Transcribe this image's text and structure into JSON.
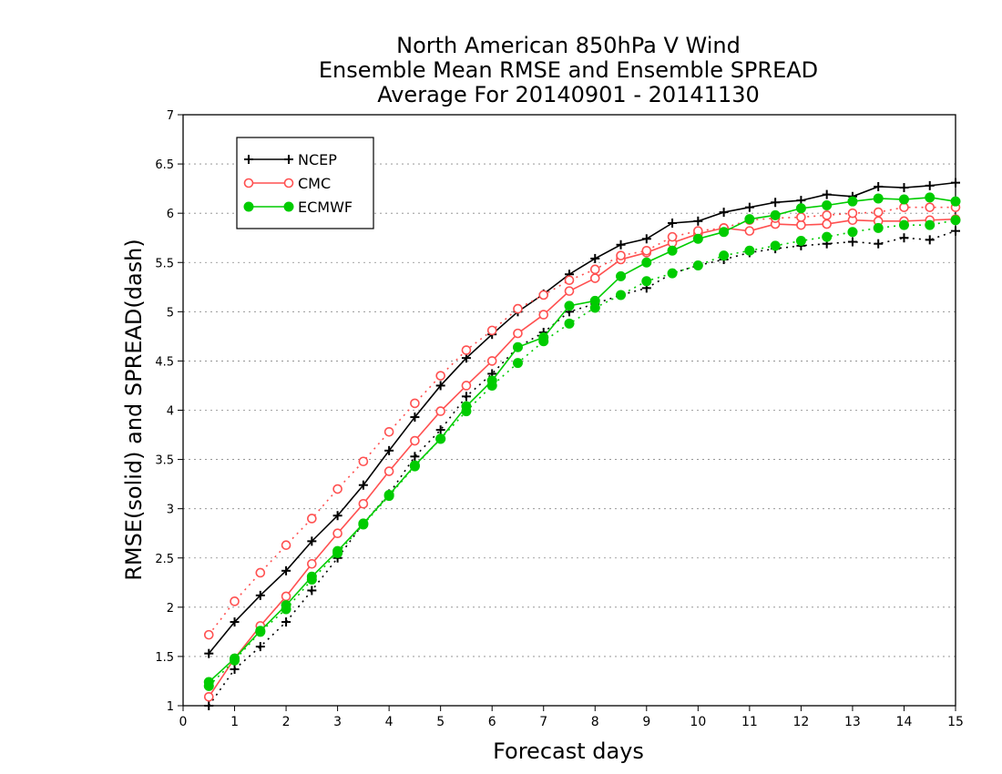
{
  "chart_data": {
    "type": "line",
    "title": [
      "North American 850hPa V Wind",
      "Ensemble Mean RMSE and Ensemble SPREAD",
      "Average For 20140901 - 20141130"
    ],
    "xlabel": "Forecast days",
    "ylabel": "RMSE(solid) and SPREAD(dash)",
    "xlim": [
      0,
      15
    ],
    "ylim": [
      1,
      7
    ],
    "xticks": [
      "0",
      "1",
      "2",
      "3",
      "4",
      "5",
      "6",
      "7",
      "8",
      "9",
      "10",
      "11",
      "12",
      "13",
      "14",
      "15"
    ],
    "yticks": [
      "1",
      "1.5",
      "2",
      "2.5",
      "3",
      "3.5",
      "4",
      "4.5",
      "5",
      "5.5",
      "6",
      "6.5",
      "7"
    ],
    "grid": true,
    "legend_position": "top-left",
    "x": [
      0.5,
      1,
      1.5,
      2,
      2.5,
      3,
      3.5,
      4,
      4.5,
      5,
      5.5,
      6,
      6.5,
      7,
      7.5,
      8,
      8.5,
      9,
      9.5,
      10,
      10.5,
      11,
      11.5,
      12,
      12.5,
      13,
      13.5,
      14,
      14.5,
      15
    ],
    "series": [
      {
        "name": "NCEP",
        "metric": "RMSE",
        "style": "solid",
        "marker": "plus",
        "color": "#000000",
        "values": [
          1.53,
          1.85,
          2.12,
          2.37,
          2.67,
          2.93,
          3.24,
          3.59,
          3.93,
          4.25,
          4.53,
          4.77,
          5.0,
          5.18,
          5.38,
          5.54,
          5.68,
          5.74,
          5.9,
          5.92,
          6.01,
          6.06,
          6.11,
          6.13,
          6.19,
          6.17,
          6.27,
          6.26,
          6.28,
          6.31
        ]
      },
      {
        "name": "NCEP",
        "metric": "SPREAD",
        "style": "dotted",
        "marker": "plus",
        "color": "#000000",
        "values": [
          1.0,
          1.37,
          1.6,
          1.85,
          2.17,
          2.5,
          2.85,
          3.15,
          3.53,
          3.8,
          4.14,
          4.37,
          4.64,
          4.79,
          5.0,
          5.08,
          5.17,
          5.24,
          5.39,
          5.47,
          5.53,
          5.6,
          5.64,
          5.67,
          5.69,
          5.71,
          5.69,
          5.75,
          5.73,
          5.82
        ]
      },
      {
        "name": "CMC",
        "metric": "RMSE",
        "style": "solid",
        "marker": "open-circle",
        "color": "#ff5050",
        "values": [
          1.09,
          1.48,
          1.81,
          2.11,
          2.44,
          2.75,
          3.05,
          3.38,
          3.69,
          3.99,
          4.25,
          4.5,
          4.78,
          4.97,
          5.21,
          5.34,
          5.53,
          5.6,
          5.7,
          5.79,
          5.85,
          5.82,
          5.89,
          5.88,
          5.89,
          5.93,
          5.92,
          5.92,
          5.93,
          5.94
        ]
      },
      {
        "name": "CMC",
        "metric": "SPREAD",
        "style": "dotted",
        "marker": "open-circle",
        "color": "#ff5050",
        "values": [
          1.72,
          2.06,
          2.35,
          2.63,
          2.9,
          3.2,
          3.48,
          3.78,
          4.07,
          4.35,
          4.61,
          4.81,
          5.03,
          5.17,
          5.32,
          5.43,
          5.57,
          5.62,
          5.76,
          5.82,
          5.85,
          5.93,
          5.95,
          5.96,
          5.98,
          6.0,
          6.01,
          6.06,
          6.06,
          6.06
        ]
      },
      {
        "name": "ECMWF",
        "metric": "RMSE",
        "style": "solid",
        "marker": "filled-circle",
        "color": "#00cc00",
        "values": [
          1.24,
          1.48,
          1.76,
          2.02,
          2.31,
          2.57,
          2.85,
          3.14,
          3.44,
          3.71,
          4.04,
          4.3,
          4.64,
          4.74,
          5.06,
          5.11,
          5.36,
          5.5,
          5.62,
          5.74,
          5.81,
          5.94,
          5.98,
          6.05,
          6.08,
          6.12,
          6.15,
          6.14,
          6.16,
          6.12
        ]
      },
      {
        "name": "ECMWF",
        "metric": "SPREAD",
        "style": "dotted",
        "marker": "filled-circle",
        "color": "#00cc00",
        "values": [
          1.2,
          1.46,
          1.75,
          1.98,
          2.28,
          2.55,
          2.84,
          3.13,
          3.43,
          3.71,
          3.99,
          4.25,
          4.48,
          4.7,
          4.88,
          5.04,
          5.17,
          5.31,
          5.39,
          5.47,
          5.57,
          5.62,
          5.67,
          5.72,
          5.76,
          5.81,
          5.85,
          5.88,
          5.88,
          5.93
        ]
      }
    ],
    "legend": [
      "NCEP",
      "CMC",
      "ECMWF"
    ]
  }
}
